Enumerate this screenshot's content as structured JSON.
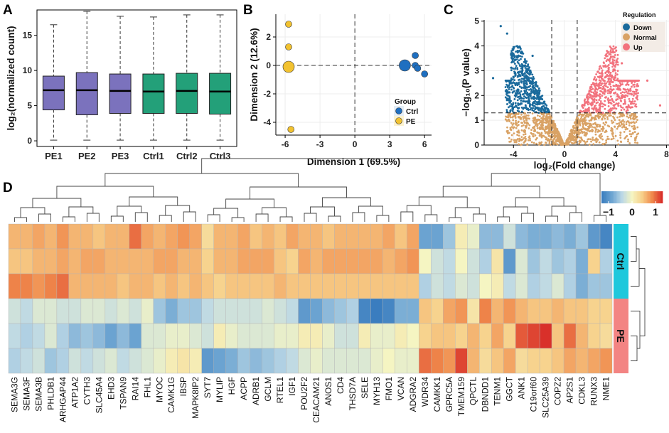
{
  "panels": {
    "a": "A",
    "b": "B",
    "c": "C",
    "d": "D"
  },
  "chart_data": [
    {
      "panel": "A",
      "type": "box",
      "ylabel": "log₂(normalized count)",
      "yticks": [
        0,
        5,
        10,
        15
      ],
      "ylim": [
        -0.8,
        18.6
      ],
      "categories": [
        "PE1",
        "PE2",
        "PE3",
        "Ctrl1",
        "Ctrl2",
        "Ctrl3"
      ],
      "groups": [
        "PE",
        "PE",
        "PE",
        "Ctrl",
        "Ctrl",
        "Ctrl"
      ],
      "colors": {
        "PE": "#7b72bd",
        "Ctrl": "#23a079"
      },
      "boxes": [
        {
          "whisker_low": 0.1,
          "q1": 4.4,
          "median": 7.2,
          "q3": 9.2,
          "whisker_high": 16.5
        },
        {
          "whisker_low": 0.1,
          "q1": 3.7,
          "median": 7.2,
          "q3": 9.7,
          "whisker_high": 18.4
        },
        {
          "whisker_low": 0.1,
          "q1": 3.9,
          "median": 7.1,
          "q3": 9.5,
          "whisker_high": 17.7
        },
        {
          "whisker_low": 0.1,
          "q1": 3.9,
          "median": 7.0,
          "q3": 9.5,
          "whisker_high": 17.6
        },
        {
          "whisker_low": 0.1,
          "q1": 3.9,
          "median": 7.1,
          "q3": 9.6,
          "whisker_high": 17.9
        },
        {
          "whisker_low": 0.1,
          "q1": 3.8,
          "median": 7.0,
          "q3": 9.6,
          "whisker_high": 17.9
        }
      ]
    },
    {
      "panel": "B",
      "type": "scatter",
      "xlabel": "Dimension 1 (69.5%)",
      "ylabel": "Dimension 2 (12.6%)",
      "xticks": [
        -6,
        -3,
        0,
        3,
        6
      ],
      "yticks": [
        -4,
        -2,
        0,
        2
      ],
      "xlim": [
        -6.8,
        6.6
      ],
      "ylim": [
        -4.9,
        3.6
      ],
      "legend_title": "Group",
      "legend_position": "bottom-right",
      "series": [
        {
          "name": "Ctrl",
          "color": "#1f6fc0",
          "points": [
            [
              5.2,
              0.7
            ],
            [
              4.3,
              0.0
            ],
            [
              5.2,
              0.0
            ],
            [
              5.4,
              -0.2
            ],
            [
              6.0,
              -0.6
            ]
          ],
          "sizes": [
            1,
            3,
            1,
            1,
            1
          ]
        },
        {
          "name": "PE",
          "color": "#f2c230",
          "points": [
            [
              -5.7,
              2.9
            ],
            [
              -5.7,
              1.3
            ],
            [
              -5.7,
              -0.1
            ],
            [
              -5.5,
              -4.5
            ]
          ],
          "sizes": [
            1,
            1,
            3,
            1
          ]
        }
      ]
    },
    {
      "panel": "C",
      "type": "scatter",
      "subtype": "volcano",
      "xlabel": "log₂(Fold change)",
      "ylabel": "−log₁₀(P value)",
      "xticks": [
        -4,
        0,
        4,
        8
      ],
      "yticks": [
        0,
        1,
        2,
        3,
        4,
        5
      ],
      "xlim": [
        -6.3,
        8.2
      ],
      "ylim": [
        0,
        5.05
      ],
      "fc_threshold": [
        -1,
        1
      ],
      "p_threshold": 1.3,
      "legend_title": "Regulation",
      "legend_position": "top-right",
      "categories": [
        {
          "name": "Down",
          "color": "#1a6a9c"
        },
        {
          "name": "Normal",
          "color": "#d9a265"
        },
        {
          "name": "Up",
          "color": "#f2727d"
        }
      ],
      "notable_points": [
        [
          -5.0,
          4.8
        ],
        [
          -4.5,
          4.5
        ],
        [
          -2.5,
          3.6
        ],
        [
          -5.6,
          2.7
        ],
        [
          4.5,
          3.3
        ],
        [
          6.5,
          2.6
        ],
        [
          7.5,
          1.6
        ]
      ]
    },
    {
      "panel": "D",
      "type": "heatmap",
      "legend_ticks": [
        -1,
        0,
        1
      ],
      "color_scale": [
        "#3a7dbf",
        "#6fa6d2",
        "#bcd8e6",
        "#f5f5c2",
        "#f7d08a",
        "#f08a4c",
        "#d9302a"
      ],
      "row_groups": [
        {
          "label": "Ctrl",
          "color": "#1ec8dc",
          "rows": [
            0,
            1,
            2
          ]
        },
        {
          "label": "PE",
          "color": "#f38483",
          "rows": [
            3,
            4,
            5
          ]
        }
      ],
      "genes": [
        "SEMA3G",
        "SEMA3F",
        "SEMA3B",
        "PHLDB1",
        "ARHGAP44",
        "ATP1A2",
        "CYTH3",
        "SLC45A4",
        "EHD3",
        "TSPAN9",
        "RAI14",
        "FHL1",
        "MYOC",
        "CAMK1G",
        "IBSP",
        "MAPK8IP2",
        "SYT7",
        "MYLIP",
        "HGF",
        "ACPP",
        "ADRB1",
        "GCLM",
        "RTEL1",
        "IGF1",
        "POU2F2",
        "CEACAM21",
        "ANOS1",
        "CD4",
        "THSD7A",
        "SELE",
        "MYH13",
        "FMO1",
        "VCAN",
        "ADGRA2",
        "WDR34",
        "CAMKK1",
        "GPRC5A",
        "TMEM159",
        "QPCTL",
        "DBNDD1",
        "TENM1",
        "GGCT",
        "ANK1",
        "C19orf60",
        "SLC25A39",
        "COPZ2",
        "AP2S1",
        "CDKL3",
        "RUNX3",
        "NME1"
      ],
      "values": [
        [
          0.6,
          0.6,
          0.7,
          0.6,
          0.8,
          0.6,
          0.6,
          0.5,
          0.6,
          0.6,
          1.0,
          0.7,
          0.6,
          0.7,
          0.8,
          0.7,
          0.3,
          0.6,
          0.6,
          0.7,
          0.5,
          0.6,
          0.5,
          0.7,
          0.6,
          0.6,
          0.5,
          0.6,
          0.6,
          0.6,
          0.6,
          0.7,
          0.5,
          0.7,
          -0.9,
          -0.9,
          -0.6,
          0.1,
          -0.1,
          -0.7,
          -0.7,
          -0.3,
          -0.7,
          -0.8,
          -0.8,
          -0.7,
          -0.8,
          -0.6,
          -1.0,
          -1.2
        ],
        [
          0.5,
          0.5,
          0.6,
          0.6,
          0.7,
          0.6,
          0.7,
          0.7,
          0.6,
          0.6,
          0.6,
          0.6,
          0.7,
          0.7,
          0.6,
          0.6,
          0.4,
          0.6,
          0.6,
          0.7,
          0.7,
          0.7,
          0.5,
          0.4,
          0.7,
          0.6,
          0.7,
          0.7,
          0.7,
          0.7,
          0.7,
          0.6,
          0.7,
          0.8,
          0.0,
          -0.3,
          -0.4,
          0.0,
          -0.3,
          -0.5,
          0.2,
          -1.0,
          -0.2,
          -0.6,
          -0.4,
          -0.6,
          -0.5,
          -0.8,
          0.4,
          -0.5
        ],
        [
          0.9,
          0.9,
          0.8,
          0.9,
          1.0,
          0.6,
          0.6,
          0.6,
          0.6,
          0.5,
          0.6,
          0.6,
          0.5,
          0.6,
          0.5,
          0.6,
          0.5,
          0.4,
          0.5,
          0.5,
          0.5,
          0.5,
          0.6,
          0.5,
          0.5,
          0.5,
          0.5,
          0.5,
          0.5,
          0.5,
          0.5,
          0.5,
          0.5,
          0.5,
          -0.5,
          -0.3,
          -0.4,
          -0.2,
          -0.3,
          0.0,
          0.1,
          -0.4,
          -0.2,
          -0.5,
          -0.4,
          -0.2,
          -0.5,
          -0.8,
          -0.6,
          -0.6
        ],
        [
          -0.3,
          -0.4,
          -0.2,
          -0.2,
          -0.3,
          -0.3,
          -0.2,
          -0.2,
          -0.3,
          -0.2,
          -0.3,
          -0.1,
          -0.6,
          -0.8,
          -0.6,
          -0.6,
          -0.4,
          -0.3,
          -0.3,
          -0.3,
          -0.3,
          -0.2,
          -0.3,
          -0.4,
          -1.0,
          -0.9,
          -0.7,
          -0.6,
          -0.5,
          -1.2,
          -1.3,
          -1.2,
          -0.8,
          -0.8,
          0.5,
          0.4,
          0.7,
          0.8,
          0.2,
          0.9,
          0.6,
          0.8,
          0.6,
          0.5,
          0.5,
          0.6,
          0.5,
          0.5,
          0.4,
          0.4
        ],
        [
          -0.4,
          -0.5,
          -0.4,
          -0.2,
          -0.5,
          -0.7,
          -0.6,
          -0.7,
          -0.9,
          -0.7,
          -0.9,
          -0.2,
          -0.2,
          -0.1,
          -0.1,
          -0.2,
          -0.3,
          0.1,
          -0.1,
          -0.2,
          -0.2,
          -0.2,
          -0.1,
          -0.1,
          0.1,
          0.1,
          -0.1,
          -0.3,
          -0.3,
          0.1,
          -0.1,
          -0.1,
          0.1,
          0.0,
          0.4,
          0.5,
          0.5,
          0.4,
          0.6,
          0.4,
          0.7,
          0.4,
          1.1,
          1.2,
          1.3,
          0.5,
          1.0,
          0.6,
          0.4,
          0.3
        ],
        [
          -0.5,
          -0.4,
          -0.3,
          -0.6,
          -0.5,
          -0.3,
          -0.4,
          -0.3,
          -0.2,
          -0.4,
          -0.3,
          -0.2,
          -0.1,
          0.1,
          0.2,
          0.1,
          -1.0,
          -0.9,
          -0.8,
          -0.6,
          -0.7,
          -0.6,
          -0.5,
          -0.4,
          -0.2,
          -0.1,
          -0.2,
          -0.2,
          -0.2,
          -0.2,
          -0.1,
          0.0,
          -0.1,
          -0.1,
          1.0,
          0.9,
          0.8,
          1.2,
          0.6,
          0.3,
          0.5,
          0.7,
          0.3,
          0.4,
          0.4,
          0.5,
          0.7,
          0.6,
          0.7,
          0.8
        ]
      ]
    }
  ]
}
